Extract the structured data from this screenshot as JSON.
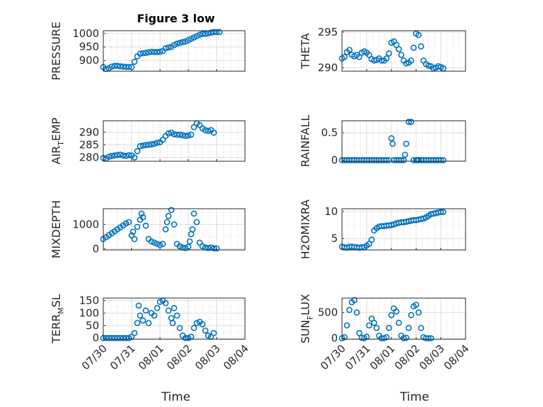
{
  "figure_title": "Figure 3 low",
  "chart_data": [
    {
      "type": "scatter",
      "title": "Figure 3 low",
      "ylabel": "PRESSURE",
      "ylabel_sub": null,
      "xlabel": "",
      "ylim": [
        860,
        1010
      ],
      "yticks": [
        900,
        950,
        1000
      ],
      "xlim": [
        "07/30",
        "08/04"
      ],
      "xticks": [
        "07/30",
        "07/31",
        "08/01",
        "08/02",
        "08/03",
        "08/04"
      ],
      "grid": true,
      "x": [
        0,
        0.1,
        0.2,
        0.3,
        0.4,
        0.5,
        0.6,
        0.7,
        0.8,
        0.9,
        1.0,
        1.1,
        1.2,
        1.3,
        1.4,
        1.5,
        1.6,
        1.7,
        1.8,
        1.9,
        2.0,
        2.1,
        2.2,
        2.3,
        2.4,
        2.5,
        2.6,
        2.7,
        2.8,
        2.9,
        3.0,
        3.1,
        3.2,
        3.3,
        3.4,
        3.5,
        3.6,
        3.7,
        3.8,
        3.9,
        4.0,
        4.1
      ],
      "y": [
        875,
        868,
        871,
        877,
        880,
        880,
        878,
        877,
        876,
        876,
        875,
        895,
        915,
        925,
        927,
        928,
        930,
        932,
        931,
        931,
        932,
        935,
        945,
        948,
        950,
        957,
        962,
        965,
        968,
        970,
        975,
        980,
        985,
        990,
        995,
        998,
        998,
        1000,
        1003,
        1005,
        1005,
        1005
      ]
    },
    {
      "type": "scatter",
      "ylabel": "THETA",
      "ylabel_sub": null,
      "ylim": [
        289.5,
        295.2
      ],
      "yticks": [
        290,
        295
      ],
      "xlim": [
        "07/30",
        "08/04"
      ],
      "xticks": [
        "07/30",
        "07/31",
        "08/01",
        "08/02",
        "08/03",
        "08/04"
      ],
      "grid": true,
      "x": [
        0,
        0.1,
        0.2,
        0.3,
        0.4,
        0.5,
        0.6,
        0.7,
        0.8,
        0.9,
        1.0,
        1.1,
        1.2,
        1.3,
        1.4,
        1.5,
        1.6,
        1.7,
        1.8,
        1.9,
        2.0,
        2.1,
        2.2,
        2.3,
        2.4,
        2.5,
        2.6,
        2.7,
        2.8,
        2.9,
        3.0,
        3.1,
        3.2,
        3.3,
        3.4,
        3.5,
        3.6,
        3.7,
        3.8,
        3.9,
        4.0,
        4.1
      ],
      "y": [
        291.3,
        291.5,
        292.2,
        292.5,
        291.8,
        291.6,
        291.8,
        291.5,
        292.1,
        292.3,
        292.1,
        291.8,
        291.2,
        291.0,
        291.1,
        291.3,
        291.0,
        291.0,
        291.3,
        292.0,
        293.5,
        293.7,
        293.2,
        292.6,
        291.8,
        291.0,
        290.6,
        290.7,
        291.0,
        292.8,
        294.8,
        294.6,
        293.0,
        291.0,
        290.5,
        290.3,
        290.2,
        289.9,
        290.0,
        290.2,
        290.1,
        289.9
      ]
    },
    {
      "type": "scatter",
      "ylabel": "AIR",
      "ylabel_sub": "T",
      "ylabel_rest": "EMP",
      "ylim": [
        278.5,
        294.5
      ],
      "yticks": [
        280,
        285,
        290
      ],
      "xlim": [
        "07/30",
        "08/04"
      ],
      "xticks": [
        "07/30",
        "07/31",
        "08/01",
        "08/02",
        "08/03",
        "08/04"
      ],
      "grid": true,
      "x": [
        0,
        0.1,
        0.2,
        0.3,
        0.4,
        0.5,
        0.6,
        0.7,
        0.8,
        0.9,
        1.0,
        1.1,
        1.2,
        1.3,
        1.4,
        1.5,
        1.6,
        1.7,
        1.8,
        1.9,
        2.0,
        2.1,
        2.2,
        2.3,
        2.4,
        2.5,
        2.6,
        2.7,
        2.8,
        2.9,
        3.0,
        3.1,
        3.2,
        3.3,
        3.4,
        3.5,
        3.6,
        3.7,
        3.8,
        3.9
      ],
      "y": [
        279.8,
        279.6,
        280.3,
        280.6,
        280.8,
        281.0,
        281.1,
        280.8,
        280.6,
        280.9,
        280.8,
        280.0,
        282.5,
        284.5,
        284.7,
        284.9,
        285.0,
        285.2,
        285.4,
        285.8,
        286.0,
        287.0,
        288.5,
        289.5,
        289.8,
        289.2,
        289.0,
        289.0,
        288.8,
        288.5,
        288.7,
        289.0,
        292.0,
        293.5,
        292.8,
        291.5,
        290.8,
        290.5,
        290.8,
        289.8
      ]
    },
    {
      "type": "scatter",
      "ylabel": "RAINFALL",
      "ylabel_sub": null,
      "ylim": [
        -0.02,
        0.72
      ],
      "yticks": [
        0,
        0.5
      ],
      "xlim": [
        "07/30",
        "08/04"
      ],
      "xticks": [
        "07/30",
        "07/31",
        "08/01",
        "08/02",
        "08/03",
        "08/04"
      ],
      "grid": true,
      "x": [
        0,
        0.1,
        0.2,
        0.3,
        0.4,
        0.5,
        0.6,
        0.7,
        0.8,
        0.9,
        1.0,
        1.1,
        1.2,
        1.3,
        1.4,
        1.5,
        1.6,
        1.7,
        1.8,
        1.9,
        2.0,
        2.05,
        2.1,
        2.2,
        2.3,
        2.4,
        2.5,
        2.55,
        2.6,
        2.7,
        2.8,
        2.9,
        3.0,
        3.05,
        3.1,
        3.2,
        3.3,
        3.4,
        3.5,
        3.6,
        3.7,
        3.8,
        3.9,
        4.0,
        4.1
      ],
      "y": [
        0,
        0,
        0,
        0,
        0,
        0,
        0,
        0,
        0,
        0,
        0,
        0,
        0,
        0,
        0,
        0,
        0,
        0,
        0,
        0,
        0.4,
        0.3,
        0,
        0,
        0,
        0,
        0,
        0.1,
        0.3,
        0.7,
        0.7,
        0,
        0,
        0,
        0,
        0,
        0,
        0,
        0,
        0,
        0,
        0,
        0,
        0,
        0
      ]
    },
    {
      "type": "scatter",
      "ylabel": "MIXDEPTH",
      "ylabel_sub": null,
      "ylim": [
        -50,
        1650
      ],
      "yticks": [
        0,
        1000
      ],
      "xlim": [
        "07/30",
        "08/04"
      ],
      "xticks": [
        "07/30",
        "07/31",
        "08/01",
        "08/02",
        "08/03",
        "08/04"
      ],
      "grid": true,
      "x": [
        0,
        0.1,
        0.2,
        0.3,
        0.4,
        0.5,
        0.6,
        0.7,
        0.8,
        0.9,
        1.0,
        1.05,
        1.1,
        1.2,
        1.3,
        1.35,
        1.4,
        1.5,
        1.6,
        1.7,
        1.8,
        1.9,
        2.0,
        2.1,
        2.2,
        2.25,
        2.3,
        2.4,
        2.5,
        2.6,
        2.7,
        2.8,
        2.9,
        3.0,
        3.05,
        3.1,
        3.15,
        3.2,
        3.3,
        3.4,
        3.5,
        3.6,
        3.7,
        3.8,
        3.9,
        4.0
      ],
      "y": [
        400,
        480,
        560,
        640,
        720,
        800,
        880,
        960,
        1040,
        1100,
        550,
        700,
        400,
        900,
        1200,
        1450,
        1300,
        950,
        400,
        300,
        250,
        200,
        150,
        200,
        800,
        1100,
        1350,
        1600,
        1000,
        200,
        100,
        50,
        30,
        80,
        300,
        600,
        800,
        1450,
        1100,
        250,
        100,
        50,
        30,
        50,
        20,
        10
      ]
    },
    {
      "type": "scatter",
      "ylabel": "H2OMIXRA",
      "ylabel_sub": null,
      "ylim": [
        2.9,
        10.5
      ],
      "yticks": [
        5,
        10
      ],
      "xlim": [
        "07/30",
        "08/04"
      ],
      "xticks": [
        "07/30",
        "07/31",
        "08/01",
        "08/02",
        "08/03",
        "08/04"
      ],
      "grid": true,
      "x": [
        0,
        0.1,
        0.2,
        0.3,
        0.4,
        0.5,
        0.6,
        0.7,
        0.8,
        0.9,
        1.0,
        1.1,
        1.2,
        1.3,
        1.4,
        1.5,
        1.6,
        1.7,
        1.8,
        1.9,
        2.0,
        2.1,
        2.2,
        2.3,
        2.4,
        2.5,
        2.6,
        2.7,
        2.8,
        2.9,
        3.0,
        3.1,
        3.2,
        3.3,
        3.4,
        3.5,
        3.6,
        3.7,
        3.8,
        3.9,
        4.0,
        4.1
      ],
      "y": [
        3.5,
        3.4,
        3.3,
        3.5,
        3.5,
        3.4,
        3.4,
        3.3,
        3.4,
        3.4,
        3.7,
        4.0,
        4.8,
        6.5,
        6.9,
        7.2,
        7.3,
        7.3,
        7.4,
        7.4,
        7.5,
        7.6,
        7.8,
        7.9,
        8.0,
        8.0,
        8.1,
        8.2,
        8.3,
        8.4,
        8.4,
        8.5,
        8.6,
        8.7,
        8.9,
        9.2,
        9.5,
        9.6,
        9.7,
        9.8,
        9.9,
        9.9
      ]
    },
    {
      "type": "scatter",
      "ylabel": "TERR",
      "ylabel_sub": "M",
      "ylabel_rest": "SL",
      "ylim": [
        -5,
        160
      ],
      "yticks": [
        0,
        50,
        100,
        150
      ],
      "xlim": [
        "07/30",
        "08/04"
      ],
      "xticks": [
        "07/30",
        "07/31",
        "08/01",
        "08/02",
        "08/03",
        "08/04"
      ],
      "grid": true,
      "x": [
        0,
        0.1,
        0.2,
        0.3,
        0.4,
        0.5,
        0.6,
        0.7,
        0.8,
        0.9,
        1.0,
        1.1,
        1.2,
        1.25,
        1.3,
        1.4,
        1.5,
        1.6,
        1.7,
        1.8,
        1.9,
        2.0,
        2.1,
        2.2,
        2.3,
        2.4,
        2.45,
        2.5,
        2.6,
        2.7,
        2.8,
        2.9,
        3.0,
        3.1,
        3.2,
        3.3,
        3.4,
        3.5,
        3.6,
        3.7,
        3.8,
        3.9
      ],
      "y": [
        0,
        0,
        0,
        0,
        0,
        0,
        0,
        0,
        0,
        0,
        5,
        20,
        60,
        130,
        90,
        70,
        110,
        60,
        100,
        90,
        120,
        145,
        150,
        140,
        110,
        80,
        60,
        120,
        90,
        40,
        10,
        0,
        0,
        5,
        40,
        60,
        65,
        55,
        30,
        10,
        5,
        20
      ]
    },
    {
      "type": "scatter",
      "ylabel": "SUN",
      "ylabel_sub": "F",
      "ylabel_rest": "LUX",
      "ylim": [
        -20,
        780
      ],
      "yticks": [
        0,
        500
      ],
      "xlim": [
        "07/30",
        "08/04"
      ],
      "xticks": [
        "07/30",
        "07/31",
        "08/01",
        "08/02",
        "08/03",
        "08/04"
      ],
      "grid": true,
      "x": [
        0,
        0.1,
        0.2,
        0.3,
        0.4,
        0.5,
        0.6,
        0.7,
        0.8,
        0.9,
        1.0,
        1.1,
        1.2,
        1.3,
        1.4,
        1.5,
        1.6,
        1.7,
        1.8,
        1.9,
        2.0,
        2.1,
        2.2,
        2.3,
        2.4,
        2.5,
        2.6,
        2.7,
        2.8,
        2.9,
        3.0,
        3.1,
        3.2,
        3.3,
        3.4,
        3.5,
        3.6
      ],
      "y": [
        0,
        20,
        250,
        550,
        700,
        740,
        500,
        100,
        10,
        0,
        30,
        250,
        380,
        300,
        200,
        50,
        0,
        0,
        20,
        200,
        450,
        580,
        520,
        300,
        50,
        0,
        10,
        200,
        450,
        620,
        650,
        500,
        200,
        20,
        0,
        0,
        0
      ]
    }
  ],
  "bottom_xlabel": [
    "Time",
    "Time"
  ]
}
